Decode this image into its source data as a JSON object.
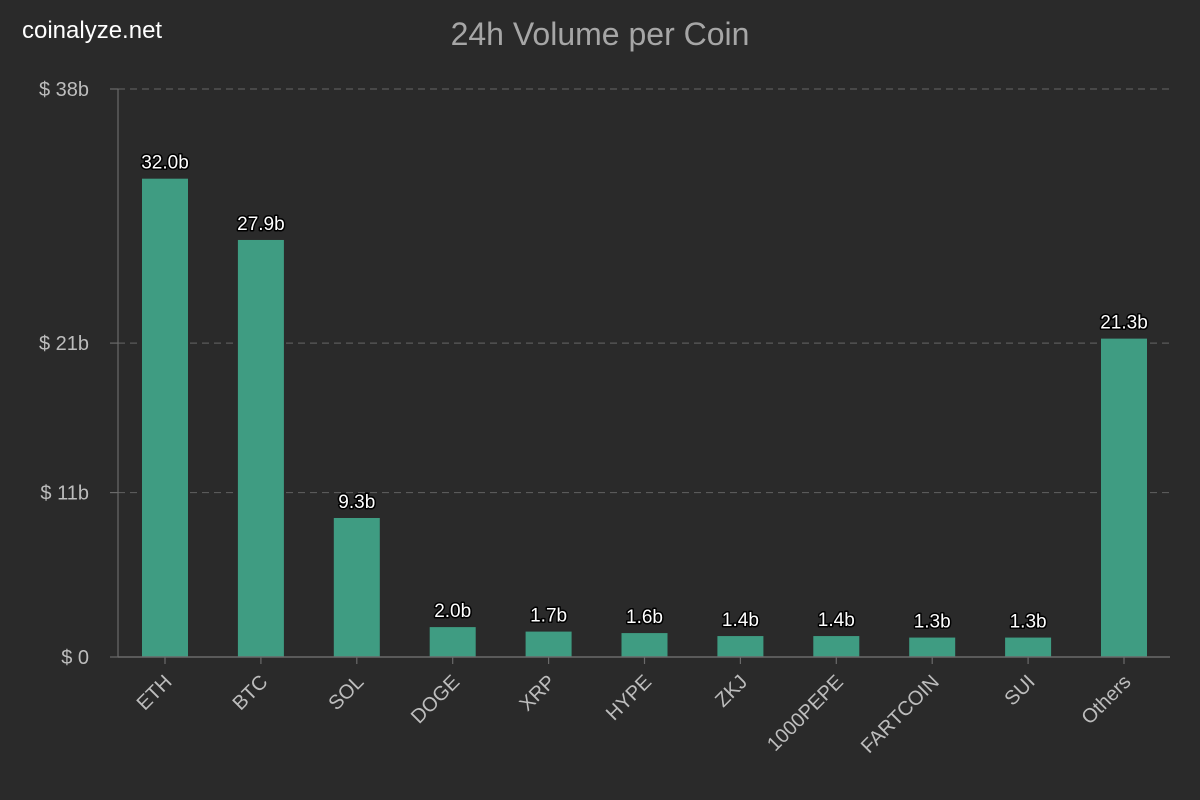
{
  "brand": "coinalyze.net",
  "chart_data": {
    "type": "bar",
    "title": "24h Volume per Coin",
    "xlabel": "",
    "ylabel": "",
    "categories": [
      "ETH",
      "BTC",
      "SOL",
      "DOGE",
      "XRP",
      "HYPE",
      "ZKJ",
      "1000PEPE",
      "FARTCOIN",
      "SUI",
      "Others"
    ],
    "values": [
      32.0,
      27.9,
      9.3,
      2.0,
      1.7,
      1.6,
      1.4,
      1.4,
      1.3,
      1.3,
      21.3
    ],
    "value_labels": [
      "32.0b",
      "27.9b",
      "9.3b",
      "2.0b",
      "1.7b",
      "1.6b",
      "1.4b",
      "1.4b",
      "1.3b",
      "1.3b",
      "21.3b"
    ],
    "y_ticks": [
      {
        "value": 0,
        "label": "$ 0"
      },
      {
        "value": 11,
        "label": "$ 11b"
      },
      {
        "value": 21,
        "label": "$ 21b"
      },
      {
        "value": 38,
        "label": "$ 38b"
      }
    ],
    "ylim": [
      0,
      38
    ],
    "grid": true,
    "bar_color": "#3f9c82",
    "background": "#2a2a2a"
  }
}
